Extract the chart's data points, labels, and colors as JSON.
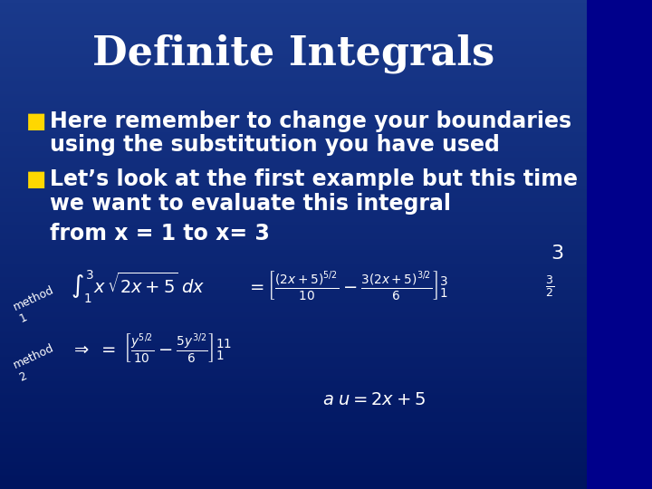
{
  "title": "Definite Integrals",
  "title_color": "#ffffff",
  "title_fontsize": 32,
  "title_fontweight": "bold",
  "background_color_top": "#00008B",
  "background_color_bottom": "#003080",
  "bullet_color": "#FFD700",
  "bullet1_line1": "Here remember to change your boundaries",
  "bullet1_line2": "using the substitution you have used",
  "bullet2_line1": "Let’s look at the first example but this time",
  "bullet2_line2": "we want to evaluate this integral",
  "from_line": "from x = 1 to x= 3",
  "text_color": "#ffffff",
  "body_fontsize": 17,
  "handwriting_color": "#ffffff",
  "handwriting_fontsize": 13
}
